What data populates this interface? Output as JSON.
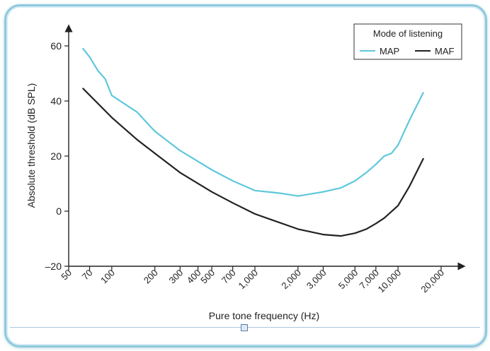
{
  "chart_data": {
    "type": "line",
    "xlabel": "Pure tone frequency (Hz)",
    "ylabel": "Absolute threshold (dB SPL)",
    "x_scale": "log",
    "xlim": [
      50,
      20000
    ],
    "ylim": [
      -20,
      60
    ],
    "xticks": [
      50,
      70,
      100,
      200,
      300,
      400,
      500,
      700,
      1000,
      2000,
      3000,
      5000,
      7000,
      10000,
      20000
    ],
    "xtick_labels": [
      "50",
      "70",
      "100",
      "200",
      "300",
      "400",
      "500",
      "700",
      "1,000",
      "2,000",
      "3,000",
      "5,000",
      "7,000",
      "10,000",
      "20,000"
    ],
    "yticks": [
      -20,
      0,
      20,
      40,
      60
    ],
    "ytick_labels": [
      "–20",
      "0",
      "20",
      "40",
      "60"
    ],
    "grid": false,
    "legend": {
      "title": "Mode of listening",
      "position": "top-right"
    },
    "series": [
      {
        "name": "MAP",
        "color": "#5ec8dc",
        "x": [
          63,
          70,
          80,
          90,
          100,
          150,
          200,
          300,
          500,
          700,
          1000,
          1500,
          2000,
          3000,
          4000,
          5000,
          6000,
          7000,
          8000,
          9000,
          10000,
          12000,
          15000
        ],
        "y": [
          59,
          56,
          51,
          48,
          42,
          36,
          29,
          22,
          15,
          11,
          7.5,
          6.5,
          5.5,
          7,
          8.5,
          11,
          14,
          17,
          20,
          21,
          24,
          33,
          43
        ]
      },
      {
        "name": "MAF",
        "color": "#222222",
        "x": [
          63,
          100,
          150,
          200,
          300,
          500,
          700,
          1000,
          2000,
          3000,
          4000,
          5000,
          6000,
          7000,
          8000,
          10000,
          12000,
          15000
        ],
        "y": [
          44.5,
          34,
          26,
          21,
          14,
          7,
          3,
          -1,
          -6.5,
          -8.5,
          -9,
          -8,
          -6.5,
          -4.5,
          -2.5,
          2,
          9,
          19
        ]
      }
    ]
  },
  "ui": {
    "resize_handle_icon": "square-handle-icon"
  }
}
